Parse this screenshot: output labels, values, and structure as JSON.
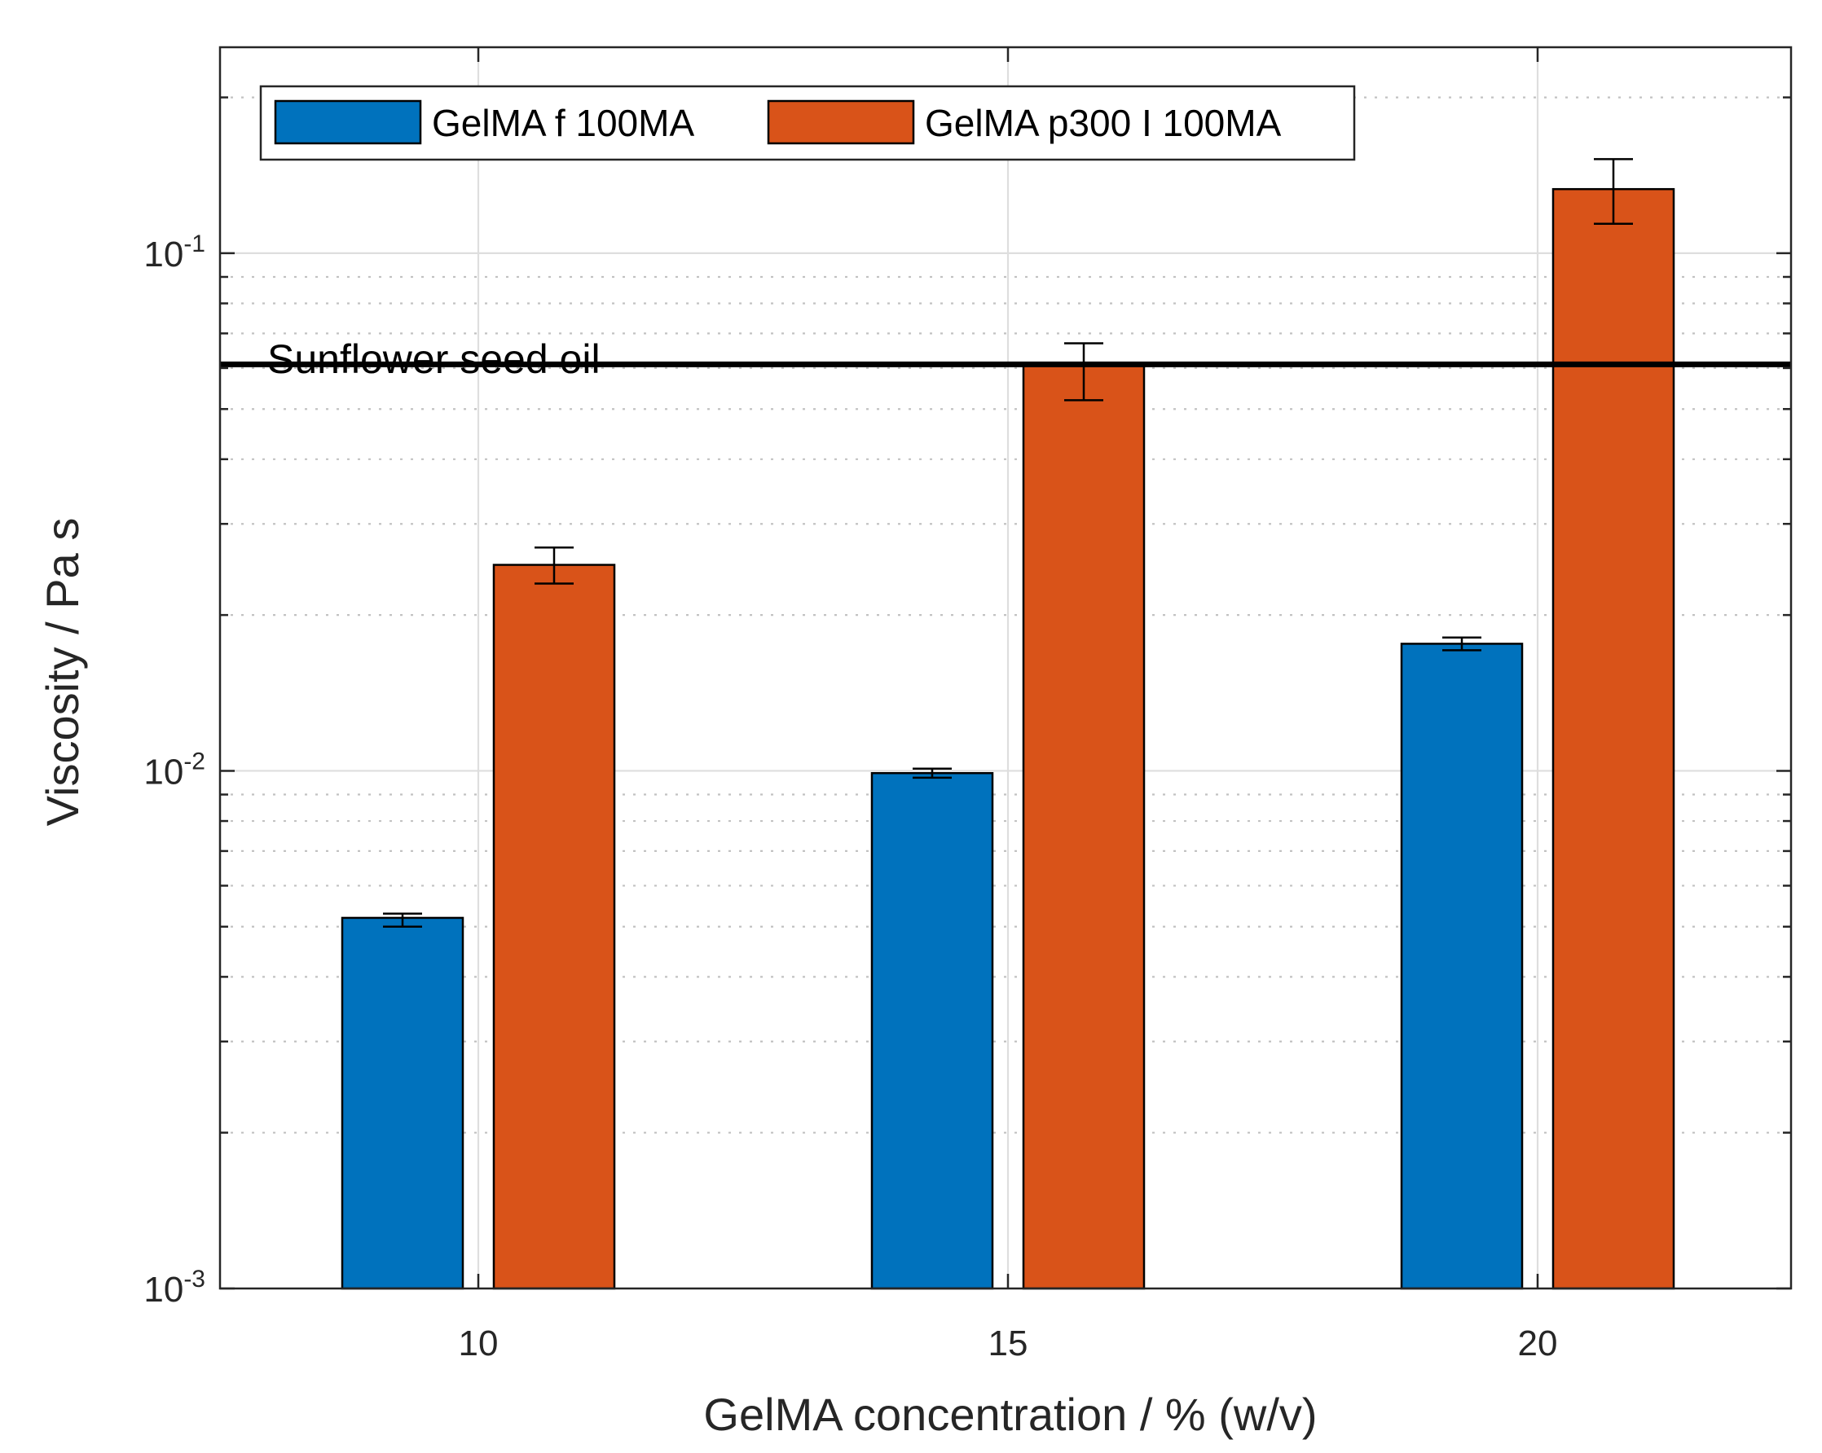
{
  "chart_data": {
    "type": "bar",
    "xlabel": "GelMA concentration / % (w/v)",
    "ylabel": "Viscosity / Pa s",
    "yscale": "log",
    "ylim": [
      0.001,
      0.25
    ],
    "categories": [
      "10",
      "15",
      "20"
    ],
    "x_values": [
      10,
      15,
      20
    ],
    "y_ticks": [
      {
        "value": 0.001,
        "base": "10",
        "exp": "-3"
      },
      {
        "value": 0.01,
        "base": "10",
        "exp": "-2"
      },
      {
        "value": 0.1,
        "base": "10",
        "exp": "-1"
      }
    ],
    "grid": true,
    "legend_position": "top-left",
    "series": [
      {
        "name": "GelMA f 100MA",
        "color": "#0072BD",
        "values": [
          0.0052,
          0.0099,
          0.0176
        ],
        "err_low": [
          0.005,
          0.0097,
          0.0171
        ],
        "err_high": [
          0.0053,
          0.0101,
          0.0181
        ]
      },
      {
        "name": "GelMA p300 I 100MA",
        "color": "#D95319",
        "values": [
          0.025,
          0.061,
          0.133
        ],
        "err_low": [
          0.023,
          0.052,
          0.114
        ],
        "err_high": [
          0.027,
          0.067,
          0.152
        ]
      }
    ],
    "reference_line": {
      "label": "Sunflower seed oil",
      "value": 0.061,
      "color": "#000000"
    }
  }
}
